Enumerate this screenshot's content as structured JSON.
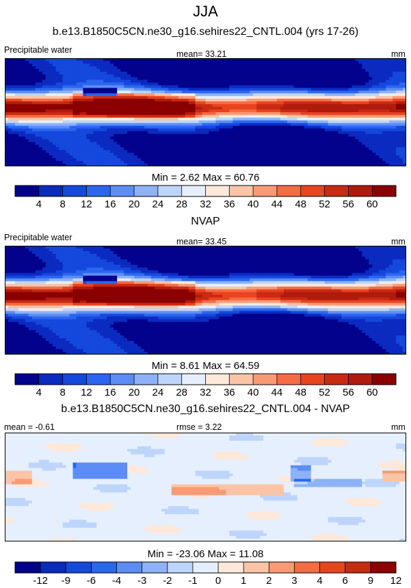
{
  "header": {
    "title": "JJA"
  },
  "palettes": {
    "abs": [
      "#02028c",
      "#0b2ac0",
      "#1548dc",
      "#2b66f0",
      "#5c8df6",
      "#8db2f8",
      "#bed5fb",
      "#e6effd",
      "#fde8d9",
      "#fbc4a6",
      "#f89b75",
      "#f46b44",
      "#e8441f",
      "#c92a12",
      "#b01b0d",
      "#8b0000"
    ],
    "diff": [
      "#02028c",
      "#0b2ac0",
      "#1548dc",
      "#2b66f0",
      "#5c8df6",
      "#8db2f8",
      "#bed5fb",
      "#e6effd",
      "#fde8d9",
      "#fbc4a6",
      "#f89b75",
      "#f46b44",
      "#e8441f",
      "#c92a12",
      "#8b0000"
    ]
  },
  "panels": [
    {
      "subtitle": "b.e13.B1850C5CN.ne30_g16.sehires22_CNTL.004 (yrs 17-26)",
      "left_label": "Precipitable water",
      "center_label": "mean=  33.21",
      "right_label": "mm",
      "minmax": "Min =   2.62 Max =  60.76"
    },
    {
      "subtitle": "NVAP",
      "left_label": "Precipitable water",
      "center_label": "mean=  33.45",
      "right_label": "mm",
      "minmax": "Min =   8.61 Max =  64.59"
    },
    {
      "subtitle": "b.e13.B1850C5CN.ne30_g16.sehires22_CNTL.004 - NVAP",
      "left_label": "mean =  -0.61",
      "center_label": "rmse =   3.22",
      "right_label": "mm",
      "minmax": "Min = -23.06 Max =  11.08"
    }
  ],
  "chart_data": [
    {
      "type": "heatmap",
      "title": "b.e13.B1850C5CN.ne30_g16.sehires22_CNTL.004 (yrs 17-26)",
      "variable": "Precipitable water",
      "units": "mm",
      "mean": 33.21,
      "min": 2.62,
      "max": 60.76,
      "colorbar_levels": [
        4,
        8,
        12,
        16,
        20,
        24,
        28,
        32,
        36,
        40,
        44,
        48,
        52,
        56,
        60
      ],
      "colorbar_tick_labels": [
        "4",
        "8",
        "12",
        "16",
        "20",
        "24",
        "28",
        "32",
        "36",
        "40",
        "44",
        "48",
        "52",
        "56",
        "60"
      ]
    },
    {
      "type": "heatmap",
      "title": "NVAP",
      "variable": "Precipitable water",
      "units": "mm",
      "mean": 33.45,
      "min": 8.61,
      "max": 64.59,
      "colorbar_levels": [
        4,
        8,
        12,
        16,
        20,
        24,
        28,
        32,
        36,
        40,
        44,
        48,
        52,
        56,
        60
      ],
      "colorbar_tick_labels": [
        "4",
        "8",
        "12",
        "16",
        "20",
        "24",
        "28",
        "32",
        "36",
        "40",
        "44",
        "48",
        "52",
        "56",
        "60"
      ]
    },
    {
      "type": "heatmap",
      "title": "b.e13.B1850C5CN.ne30_g16.sehires22_CNTL.004 - NVAP",
      "units": "mm",
      "mean": -0.61,
      "rmse": 3.22,
      "min": -23.06,
      "max": 11.08,
      "colorbar_levels": [
        -12,
        -9,
        -6,
        -4,
        -3,
        -2,
        -1,
        0,
        1,
        2,
        3,
        4,
        6,
        9,
        12
      ],
      "colorbar_tick_labels": [
        "-12",
        "-9",
        "-6",
        "-4",
        "-3",
        "-2",
        "-1",
        "0",
        "1",
        "2",
        "3",
        "4",
        "6",
        "9",
        "12"
      ]
    }
  ]
}
